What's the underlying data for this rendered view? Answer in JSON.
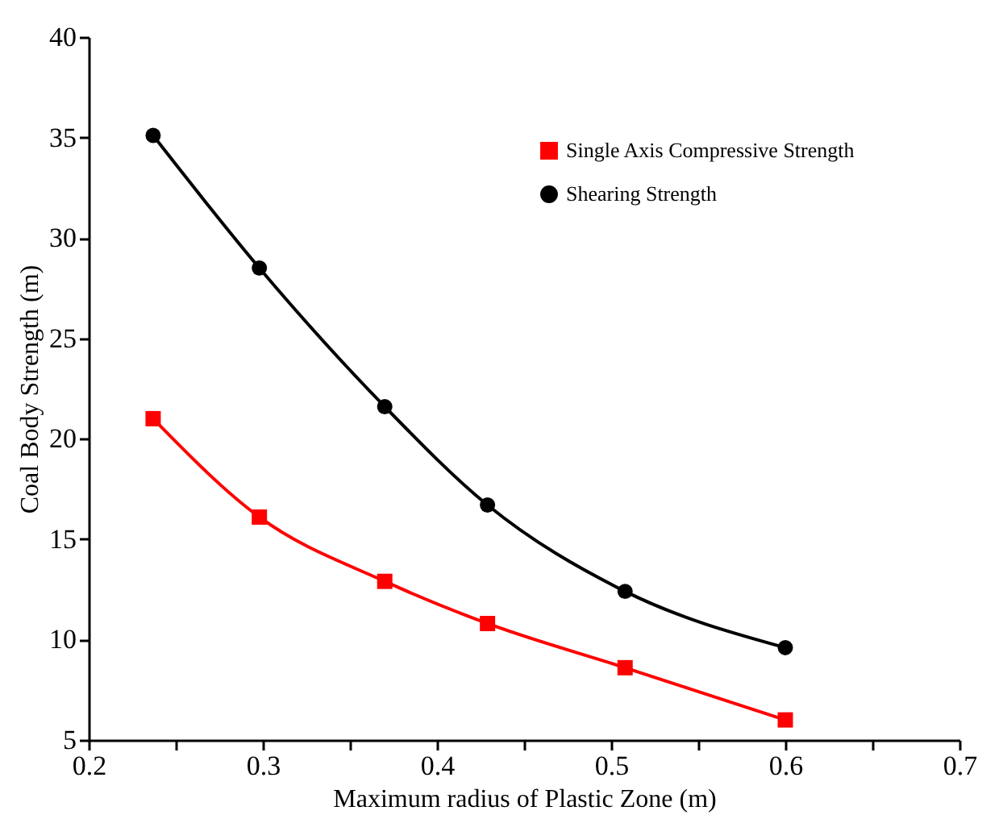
{
  "chart_data": {
    "type": "line",
    "xlabel": "Maximum radius of Plastic Zone (m)",
    "ylabel": "Coal Body Strength (m)",
    "x": [
      0.237,
      0.298,
      0.37,
      0.429,
      0.508,
      0.6
    ],
    "series": [
      {
        "name": "Single Axis Compressive Strength",
        "color": "#ff0000",
        "marker": "square",
        "values": [
          21.0,
          16.1,
          12.9,
          10.8,
          8.6,
          6.0
        ]
      },
      {
        "name": "Shearing Strength",
        "color": "#000000",
        "marker": "circle",
        "values": [
          35.1,
          28.5,
          21.6,
          16.7,
          12.4,
          9.6
        ]
      }
    ],
    "xlim": [
      0.2,
      0.7
    ],
    "xticks": [
      0.2,
      0.3,
      0.4,
      0.5,
      0.6,
      0.7
    ],
    "ylim": [
      5,
      40
    ],
    "yticks": [
      5,
      10,
      15,
      20,
      25,
      30,
      35,
      40
    ],
    "grid": false,
    "legend": "top right",
    "line_style": "solid"
  }
}
